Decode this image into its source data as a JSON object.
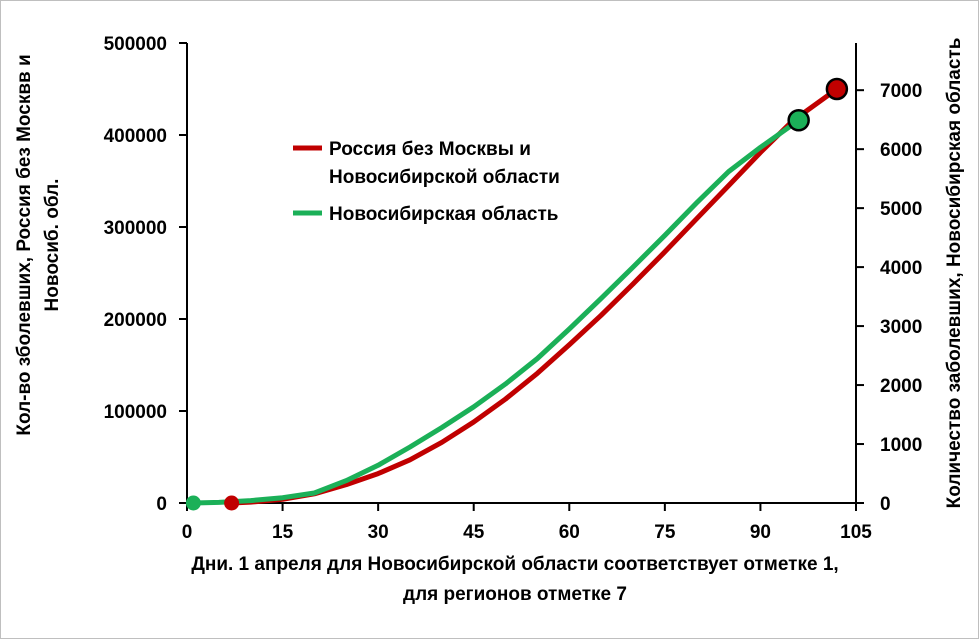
{
  "chart_data": {
    "type": "line",
    "xlabel": [
      "Дни. 1 апреля для Новосибирской области соответствует отметке 1,",
      "для регионов отметке 7"
    ],
    "ylabel": [
      "Кол-во зболевших, Россия без Москвв и",
      "Новосиб. обл."
    ],
    "y2label": "Количество заболевших, Новосибирская область",
    "xlim": [
      0,
      105
    ],
    "ylim": [
      0,
      500000
    ],
    "y2lim": [
      0,
      7800
    ],
    "x_ticks": [
      0,
      15,
      30,
      45,
      60,
      75,
      90,
      105
    ],
    "y_ticks": [
      0,
      100000,
      200000,
      300000,
      400000,
      500000
    ],
    "y2_ticks": [
      0,
      1000,
      2000,
      3000,
      4000,
      5000,
      6000,
      7000
    ],
    "legend_position": "upper-left-center",
    "series": [
      {
        "name": [
          "Россия без Москвы и",
          "Новосибирской области"
        ],
        "axis": "left",
        "color": "#C00000",
        "x": [
          7,
          10,
          15,
          20,
          25,
          30,
          35,
          40,
          45,
          50,
          55,
          60,
          65,
          70,
          75,
          80,
          85,
          90,
          95,
          102
        ],
        "y": [
          0,
          1000,
          4000,
          10000,
          20000,
          32000,
          47000,
          66000,
          88000,
          113000,
          141000,
          172000,
          204000,
          238000,
          273000,
          309000,
          345000,
          381000,
          415000,
          450000
        ],
        "markers": [
          {
            "x": 7,
            "y": 0
          },
          {
            "x": 102,
            "y": 450000
          }
        ]
      },
      {
        "name": "Новосибирская область",
        "axis": "right",
        "color": "#1BB058",
        "x": [
          1,
          5,
          10,
          15,
          20,
          25,
          30,
          35,
          40,
          45,
          50,
          55,
          60,
          65,
          70,
          75,
          80,
          85,
          90,
          96
        ],
        "y": [
          0,
          10,
          40,
          90,
          170,
          380,
          640,
          950,
          1280,
          1630,
          2020,
          2450,
          2950,
          3470,
          4000,
          4540,
          5090,
          5620,
          6030,
          6490
        ],
        "markers": [
          {
            "x": 1,
            "y": 0
          },
          {
            "x": 96,
            "y": 6490
          }
        ]
      }
    ]
  }
}
